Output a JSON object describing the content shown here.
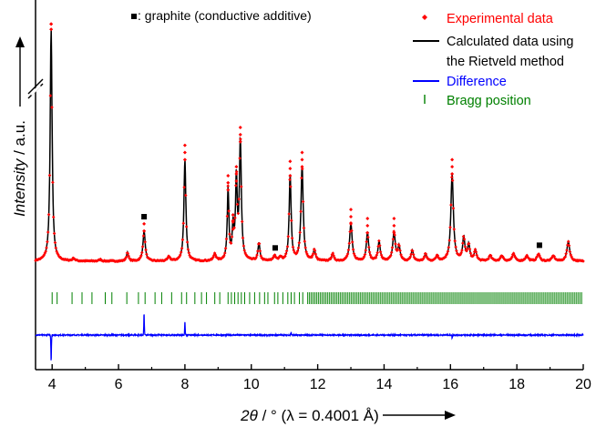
{
  "chart_data": {
    "type": "line",
    "title": "",
    "xlabel": {
      "var": "2θ",
      "unit_part": " / ° (λ = 0.4001  Å)"
    },
    "ylabel": {
      "var": "Intensity",
      "unit_part": " / a.u."
    },
    "xlim": [
      3.5,
      20
    ],
    "x_ticks": [
      4,
      6,
      8,
      10,
      12,
      14,
      16,
      18,
      20
    ],
    "x_tick_labels": [
      "4",
      "6",
      "8",
      "10",
      "12",
      "14",
      "16",
      "18",
      "20"
    ],
    "y_ticks_shown": false,
    "y_axis_break": true,
    "baseline_level": 0.02,
    "y_top": 1.0,
    "y_max_plotted": 1.35,
    "peaks": [
      {
        "x": 3.97,
        "h": 1.3,
        "w": 0.035
      },
      {
        "x": 4.65,
        "h": 0.015,
        "w": 0.04
      },
      {
        "x": 5.45,
        "h": 0.01,
        "w": 0.04
      },
      {
        "x": 6.27,
        "h": 0.05,
        "w": 0.035
      },
      {
        "x": 6.77,
        "h": 0.17,
        "w": 0.04
      },
      {
        "x": 7.52,
        "h": 0.025,
        "w": 0.04
      },
      {
        "x": 8.0,
        "h": 0.57,
        "w": 0.035
      },
      {
        "x": 8.9,
        "h": 0.04,
        "w": 0.04
      },
      {
        "x": 9.3,
        "h": 0.4,
        "w": 0.03
      },
      {
        "x": 9.45,
        "h": 0.18,
        "w": 0.03
      },
      {
        "x": 9.55,
        "h": 0.45,
        "w": 0.03
      },
      {
        "x": 9.67,
        "h": 0.67,
        "w": 0.035
      },
      {
        "x": 10.23,
        "h": 0.1,
        "w": 0.035
      },
      {
        "x": 10.7,
        "h": 0.03,
        "w": 0.04
      },
      {
        "x": 10.88,
        "h": 0.02,
        "w": 0.04
      },
      {
        "x": 11.17,
        "h": 0.48,
        "w": 0.035
      },
      {
        "x": 11.53,
        "h": 0.53,
        "w": 0.04
      },
      {
        "x": 11.9,
        "h": 0.06,
        "w": 0.04
      },
      {
        "x": 12.45,
        "h": 0.04,
        "w": 0.04
      },
      {
        "x": 13.0,
        "h": 0.21,
        "w": 0.045
      },
      {
        "x": 13.5,
        "h": 0.16,
        "w": 0.04
      },
      {
        "x": 13.85,
        "h": 0.11,
        "w": 0.04
      },
      {
        "x": 14.3,
        "h": 0.16,
        "w": 0.045
      },
      {
        "x": 14.45,
        "h": 0.08,
        "w": 0.04
      },
      {
        "x": 14.85,
        "h": 0.06,
        "w": 0.04
      },
      {
        "x": 15.25,
        "h": 0.04,
        "w": 0.04
      },
      {
        "x": 15.6,
        "h": 0.03,
        "w": 0.04
      },
      {
        "x": 16.05,
        "h": 0.49,
        "w": 0.045
      },
      {
        "x": 16.4,
        "h": 0.13,
        "w": 0.04
      },
      {
        "x": 16.55,
        "h": 0.09,
        "w": 0.04
      },
      {
        "x": 16.75,
        "h": 0.06,
        "w": 0.04
      },
      {
        "x": 17.2,
        "h": 0.03,
        "w": 0.05
      },
      {
        "x": 17.55,
        "h": 0.03,
        "w": 0.05
      },
      {
        "x": 17.9,
        "h": 0.04,
        "w": 0.05
      },
      {
        "x": 18.3,
        "h": 0.03,
        "w": 0.05
      },
      {
        "x": 18.65,
        "h": 0.04,
        "w": 0.05
      },
      {
        "x": 19.1,
        "h": 0.03,
        "w": 0.05
      },
      {
        "x": 19.55,
        "h": 0.11,
        "w": 0.05
      }
    ],
    "graphite_markers": [
      6.77,
      10.72,
      18.68
    ],
    "graphite_marker_heights": [
      0.25,
      0.075,
      0.09
    ],
    "bragg_positions_dense_range": [
      11.7,
      20.0
    ],
    "bragg_positions_sparse": [
      4.0,
      4.15,
      4.6,
      4.9,
      5.2,
      5.6,
      5.8,
      6.25,
      6.6,
      6.8,
      7.1,
      7.3,
      7.6,
      7.9,
      8.05,
      8.3,
      8.5,
      8.65,
      8.9,
      9.05,
      9.3,
      9.4,
      9.5,
      9.6,
      9.7,
      9.8,
      9.95,
      10.1,
      10.25,
      10.4,
      10.5,
      10.7,
      10.8,
      10.95,
      11.1,
      11.2,
      11.3,
      11.45,
      11.55
    ],
    "difference_spikes": [
      {
        "x": 3.97,
        "h": -0.18
      },
      {
        "x": 6.77,
        "h": 0.15
      },
      {
        "x": 8.0,
        "h": 0.09
      },
      {
        "x": 11.2,
        "h": 0.02
      },
      {
        "x": 16.05,
        "h": -0.02
      }
    ],
    "series": [
      {
        "name": "Experimental data",
        "color": "#ff0000",
        "marker": "diamond"
      },
      {
        "name_lines": [
          "Calculated data using",
          "the Rietveld method"
        ],
        "color": "#000000"
      },
      {
        "name": "Difference",
        "color": "#0000ff"
      },
      {
        "name": "Bragg position",
        "color": "#008000",
        "marker": "vline"
      }
    ],
    "annotation": {
      "marker": "■",
      "text": ": graphite (conductive additive)"
    },
    "legend_position": "top-right",
    "colors": {
      "experimental": "#ff0000",
      "calculated": "#000000",
      "difference": "#0000ff",
      "bragg": "#008000"
    }
  }
}
